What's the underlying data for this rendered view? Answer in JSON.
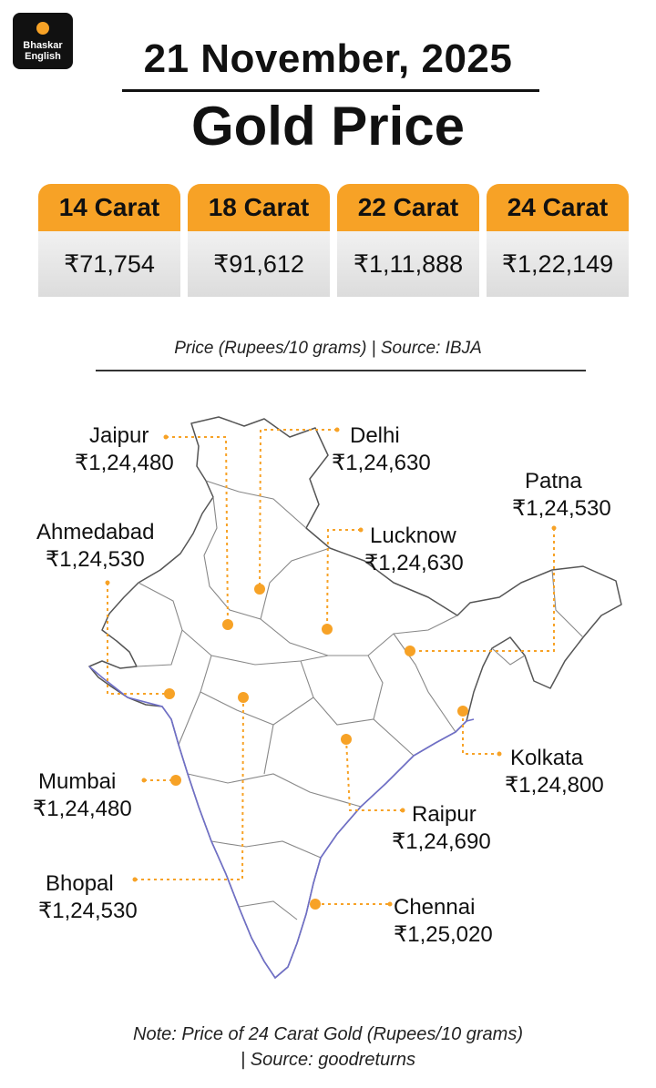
{
  "brand": {
    "line1": "Bhaskar",
    "line2": "English",
    "accent": "#f7a226"
  },
  "header": {
    "date": "21 November, 2025",
    "title": "Gold Price"
  },
  "carats": [
    {
      "label": "14 Carat",
      "price": "₹71,754"
    },
    {
      "label": "18 Carat",
      "price": "₹91,612"
    },
    {
      "label": "22 Carat",
      "price": "₹1,11,888"
    },
    {
      "label": "24 Carat",
      "price": "₹1,22,149"
    }
  ],
  "source_line": "Price (Rupees/10 grams) | Source: IBJA",
  "cities": {
    "jaipur": {
      "name": "Jaipur",
      "price": "₹1,24,480"
    },
    "delhi": {
      "name": "Delhi",
      "price": "₹1,24,630"
    },
    "patna": {
      "name": "Patna",
      "price": "₹1,24,530"
    },
    "ahmedabad": {
      "name": "Ahmedabad",
      "price": "₹1,24,530"
    },
    "lucknow": {
      "name": "Lucknow",
      "price": "₹1,24,630"
    },
    "kolkata": {
      "name": "Kolkata",
      "price": "₹1,24,800"
    },
    "mumbai": {
      "name": "Mumbai",
      "price": "₹1,24,480"
    },
    "raipur": {
      "name": "Raipur",
      "price": "₹1,24,690"
    },
    "bhopal": {
      "name": "Bhopal",
      "price": "₹1,24,530"
    },
    "chennai": {
      "name": "Chennai",
      "price": "₹1,25,020"
    }
  },
  "note": {
    "line1": "Note: Price of 24 Carat Gold (Rupees/10 grams)",
    "line2": "| Source: goodreturns"
  }
}
